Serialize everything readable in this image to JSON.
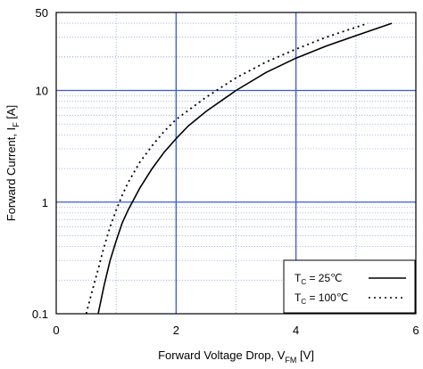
{
  "chart_data": {
    "type": "line",
    "xlabel": "Forward Voltage Drop, V",
    "xlabel_sub": "FM",
    "xlabel_unit": " [V]",
    "ylabel": "Forward Current, I",
    "ylabel_sub": "F",
    "ylabel_unit": " [A]",
    "xlim": [
      0,
      6
    ],
    "ylim": [
      0.1,
      50
    ],
    "y_scale": "log",
    "x_ticks": [
      "0",
      "2",
      "4",
      "6"
    ],
    "y_ticks": [
      "0.1",
      "1",
      "10",
      "50"
    ],
    "grid": true,
    "legend_position": "bottom-right",
    "series": [
      {
        "name": "Tc = 25℃",
        "legend_prefix": "T",
        "legend_sub": "C",
        "legend_suffix": " =   25℃",
        "style": "solid",
        "color": "#000000",
        "points": [
          [
            0.7,
            0.1
          ],
          [
            0.8,
            0.18
          ],
          [
            0.9,
            0.3
          ],
          [
            1.0,
            0.45
          ],
          [
            1.1,
            0.65
          ],
          [
            1.2,
            0.85
          ],
          [
            1.4,
            1.35
          ],
          [
            1.6,
            2.0
          ],
          [
            1.8,
            2.8
          ],
          [
            2.0,
            3.7
          ],
          [
            2.2,
            4.8
          ],
          [
            2.5,
            6.5
          ],
          [
            3.0,
            10.0
          ],
          [
            3.5,
            14.5
          ],
          [
            4.0,
            19.5
          ],
          [
            4.5,
            25.0
          ],
          [
            5.0,
            31.0
          ],
          [
            5.6,
            40.0
          ]
        ]
      },
      {
        "name": "Tc = 100℃",
        "legend_prefix": "T",
        "legend_sub": "C",
        "legend_suffix": " = 100℃",
        "style": "dotted",
        "color": "#000000",
        "points": [
          [
            0.5,
            0.1
          ],
          [
            0.6,
            0.16
          ],
          [
            0.7,
            0.25
          ],
          [
            0.8,
            0.4
          ],
          [
            0.9,
            0.6
          ],
          [
            1.0,
            0.85
          ],
          [
            1.1,
            1.15
          ],
          [
            1.2,
            1.5
          ],
          [
            1.4,
            2.3
          ],
          [
            1.6,
            3.2
          ],
          [
            1.8,
            4.3
          ],
          [
            2.0,
            5.5
          ],
          [
            2.5,
            8.7
          ],
          [
            3.0,
            13.0
          ],
          [
            3.5,
            18.0
          ],
          [
            4.0,
            23.5
          ],
          [
            4.5,
            30.0
          ],
          [
            5.2,
            40.0
          ]
        ]
      }
    ]
  }
}
